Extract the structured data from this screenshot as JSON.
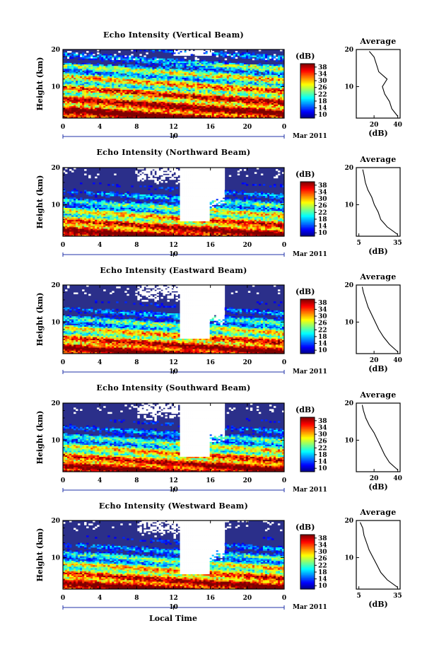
{
  "figure": {
    "xlabel": "Local Time",
    "date_label": "Mar 2011",
    "day_marker": "10"
  },
  "chart_data": [
    {
      "type": "heatmap",
      "title": "Echo Intensity (Vertical Beam)",
      "xlabel": "",
      "ylabel": "Height (km)",
      "x_ticks": [
        "0",
        "4",
        "8",
        "12",
        "16",
        "20",
        "0"
      ],
      "y_ticks": [
        "10",
        "20"
      ],
      "xlim": [
        0,
        24
      ],
      "ylim": [
        1.5,
        20
      ],
      "colorbar": {
        "label": "(dB)",
        "ticks": [
          "10",
          "14",
          "18",
          "22",
          "26",
          "30",
          "34",
          "38"
        ],
        "range": [
          10,
          38
        ]
      },
      "masked_region": false,
      "average_profile": {
        "title": "Average",
        "xlabel": "(dB)",
        "x_ticks": [
          "20",
          "40"
        ],
        "y_ticks": [
          "10",
          "20"
        ],
        "xlim": [
          5,
          42
        ],
        "heights": [
          2,
          4,
          6,
          8,
          10,
          12,
          14,
          16,
          18,
          19.5
        ],
        "values": [
          40,
          35,
          33,
          29,
          27,
          31,
          24,
          22,
          20,
          16
        ]
      }
    },
    {
      "type": "heatmap",
      "title": "Echo Intensity (Northward Beam)",
      "xlabel": "",
      "ylabel": "Height (km)",
      "x_ticks": [
        "0",
        "4",
        "8",
        "12",
        "16",
        "20",
        "0"
      ],
      "y_ticks": [
        "10",
        "20"
      ],
      "xlim": [
        0,
        24
      ],
      "ylim": [
        1.5,
        20
      ],
      "colorbar": {
        "label": "(dB)",
        "ticks": [
          "10",
          "14",
          "18",
          "22",
          "26",
          "30",
          "34",
          "38"
        ],
        "range": [
          10,
          38
        ]
      },
      "masked_region": true,
      "average_profile": {
        "title": "Average",
        "xlabel": "(dB)",
        "x_ticks": [
          "5",
          "35"
        ],
        "y_ticks": [
          "10",
          "20"
        ],
        "xlim": [
          3,
          37
        ],
        "heights": [
          2,
          4,
          6,
          8,
          10,
          12,
          14,
          16,
          18,
          19.5
        ],
        "values": [
          35,
          27,
          22,
          20,
          17,
          15,
          12,
          10,
          9,
          8
        ]
      }
    },
    {
      "type": "heatmap",
      "title": "Echo Intensity (Eastward Beam)",
      "xlabel": "",
      "ylabel": "Height (km)",
      "x_ticks": [
        "0",
        "4",
        "8",
        "12",
        "16",
        "20",
        "0"
      ],
      "y_ticks": [
        "10",
        "20"
      ],
      "xlim": [
        0,
        24
      ],
      "ylim": [
        1.5,
        20
      ],
      "colorbar": {
        "label": "(dB)",
        "ticks": [
          "10",
          "14",
          "18",
          "22",
          "26",
          "30",
          "34",
          "38"
        ],
        "range": [
          10,
          38
        ]
      },
      "masked_region": true,
      "average_profile": {
        "title": "Average",
        "xlabel": "(dB)",
        "x_ticks": [
          "20",
          "40"
        ],
        "y_ticks": [
          "10",
          "20"
        ],
        "xlim": [
          5,
          42
        ],
        "heights": [
          2,
          4,
          6,
          8,
          10,
          12,
          14,
          16,
          18,
          19.5
        ],
        "values": [
          40,
          33,
          28,
          24,
          21,
          18,
          15,
          13,
          11,
          10
        ]
      }
    },
    {
      "type": "heatmap",
      "title": "Echo Intensity (Southward Beam)",
      "xlabel": "",
      "ylabel": "Height (km)",
      "x_ticks": [
        "0",
        "4",
        "8",
        "12",
        "16",
        "20",
        "0"
      ],
      "y_ticks": [
        "10",
        "20"
      ],
      "xlim": [
        0,
        24
      ],
      "ylim": [
        1.5,
        20
      ],
      "colorbar": {
        "label": "(dB)",
        "ticks": [
          "10",
          "14",
          "18",
          "22",
          "26",
          "30",
          "34",
          "38"
        ],
        "range": [
          10,
          38
        ]
      },
      "masked_region": true,
      "average_profile": {
        "title": "Average",
        "xlabel": "(dB)",
        "x_ticks": [
          "20",
          "40"
        ],
        "y_ticks": [
          "10",
          "20"
        ],
        "xlim": [
          5,
          42
        ],
        "heights": [
          2,
          4,
          6,
          8,
          10,
          12,
          14,
          16,
          18,
          19.5
        ],
        "values": [
          40,
          33,
          29,
          26,
          23,
          20,
          16,
          13,
          11,
          10
        ]
      }
    },
    {
      "type": "heatmap",
      "title": "Echo Intensity (Westward Beam)",
      "xlabel": "Local Time",
      "ylabel": "Height (km)",
      "x_ticks": [
        "0",
        "4",
        "8",
        "12",
        "16",
        "20",
        "0"
      ],
      "y_ticks": [
        "10",
        "20"
      ],
      "xlim": [
        0,
        24
      ],
      "ylim": [
        1.5,
        20
      ],
      "colorbar": {
        "label": "(dB)",
        "ticks": [
          "10",
          "14",
          "18",
          "22",
          "26",
          "30",
          "34",
          "38"
        ],
        "range": [
          10,
          38
        ]
      },
      "masked_region": true,
      "average_profile": {
        "title": "Average",
        "xlabel": "(dB)",
        "x_ticks": [
          "5",
          "35"
        ],
        "y_ticks": [
          "10",
          "20"
        ],
        "xlim": [
          3,
          37
        ],
        "heights": [
          2,
          4,
          6,
          8,
          10,
          12,
          14,
          16,
          18,
          19.5
        ],
        "values": [
          35,
          27,
          22,
          19,
          16,
          13,
          11,
          9,
          8,
          6
        ]
      }
    }
  ]
}
